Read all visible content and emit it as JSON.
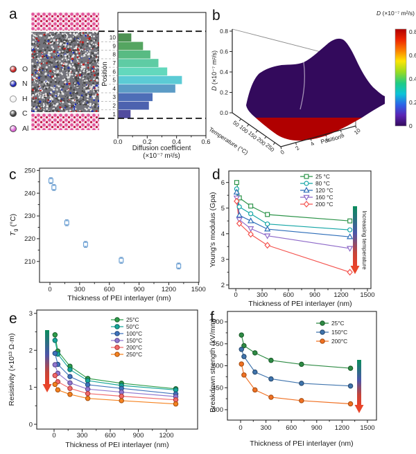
{
  "panel_labels": {
    "a": "a",
    "b": "b",
    "c": "c",
    "d": "d",
    "e": "e",
    "f": "f"
  },
  "atom_legend": [
    {
      "symbol": "O",
      "color": "#c81e1e"
    },
    {
      "symbol": "N",
      "color": "#1d24b8"
    },
    {
      "symbol": "H",
      "color": "#f2f2f2"
    },
    {
      "symbol": "C",
      "color": "#3d3d3d"
    },
    {
      "symbol": "Al",
      "color": "#d95fd2"
    }
  ],
  "chart_data": [
    {
      "id": "a",
      "type": "bar",
      "orientation": "horizontal",
      "ylabel": "Position",
      "xlabel_lines": [
        "Diffusion coefficient",
        "(×10⁻⁷ m²/s)"
      ],
      "categories": [
        "1",
        "2",
        "3",
        "4",
        "5",
        "6",
        "7",
        "8",
        "9",
        "10"
      ],
      "values": [
        0.085,
        0.21,
        0.235,
        0.39,
        0.435,
        0.335,
        0.275,
        0.22,
        0.17,
        0.09
      ],
      "bar_colors": [
        "#514b9e",
        "#4d62af",
        "#4e6eb7",
        "#5c9cc6",
        "#5ccbd5",
        "#63d8bd",
        "#5ecca4",
        "#58bb83",
        "#55a561",
        "#4c9152"
      ],
      "xticks": [
        0,
        0.2,
        0.4,
        0.6
      ],
      "xtick_labels": [
        "0.0",
        "0.2",
        "0.4",
        "0.6"
      ],
      "xlim": [
        0,
        0.6
      ]
    },
    {
      "id": "b",
      "type": "surface",
      "zlabel_parts": [
        {
          "t": "D",
          "it": 1
        },
        {
          "t": " (×10⁻⁷ m²/s)"
        }
      ],
      "ztick_labels": [
        "0.0",
        "0.2",
        "0.4",
        "0.6",
        "0.8"
      ],
      "xlabel": "Temperature (°C)",
      "xtick_labels": [
        "50",
        "100",
        "150",
        "200",
        "250"
      ],
      "ylabel": "Position",
      "ytick_labels": [
        "0",
        "2",
        "4",
        "6",
        "8",
        "10"
      ],
      "colorbar": {
        "title_parts": [
          {
            "t": "D",
            "it": 1
          },
          {
            "t": " (×10⁻⁷ m²/s)"
          }
        ],
        "tick_labels": [
          "0",
          "0.2",
          "0.4",
          "0.6",
          "0.8"
        ],
        "colors": [
          "#330a5c",
          "#5a24b4",
          "#2b63e8",
          "#0cc3d8",
          "#1ecb86",
          "#9bdc20",
          "#fde504",
          "#fb7e00",
          "#ee2500",
          "#b00000"
        ]
      }
    },
    {
      "id": "c",
      "type": "scatter",
      "xlabel": "Thickness of PEI interlayer (nm)",
      "ylabel_parts": [
        {
          "t": "T",
          "it": 1
        },
        {
          "t": "g",
          "dy": 2.5,
          "f": 0.72
        },
        {
          "t": " (°C)",
          "dy": -2.5
        }
      ],
      "x": [
        10,
        40,
        170,
        360,
        720,
        1300
      ],
      "y": [
        245.5,
        242.5,
        227,
        217.5,
        210.5,
        208
      ],
      "yerr": 1.3,
      "marker": {
        "shape": "square",
        "color": "#6fa3d6"
      },
      "xticks": [
        0,
        300,
        600,
        900,
        1200,
        1500
      ],
      "xtick_labels": [
        "0",
        "300",
        "600",
        "900",
        "1200",
        "1500"
      ],
      "yticks": [
        210,
        220,
        230,
        240,
        250
      ],
      "ytick_labels": [
        "210",
        "220",
        "230",
        "240",
        "250"
      ]
    },
    {
      "id": "d",
      "type": "line-scatter",
      "xlabel": "Thickness of PEI interlayer (nm)",
      "ylabel": "Young's modulus (Gpa)",
      "x": [
        10,
        40,
        170,
        360,
        1300
      ],
      "series": [
        {
          "name": "25 °C",
          "marker": "square",
          "color": "#2b9348",
          "values": [
            6.0,
            5.4,
            5.08,
            4.75,
            4.5
          ]
        },
        {
          "name": "80 °C",
          "marker": "circle",
          "color": "#12a5a5",
          "values": [
            5.75,
            5.05,
            4.78,
            4.38,
            4.15
          ]
        },
        {
          "name": "120 °C",
          "marker": "tri-up",
          "color": "#2b6cb8",
          "values": [
            5.62,
            4.72,
            4.5,
            4.18,
            3.88
          ]
        },
        {
          "name": "160 °C",
          "marker": "tri-down",
          "color": "#8d68c8",
          "values": [
            5.4,
            4.55,
            4.2,
            3.92,
            3.43
          ]
        },
        {
          "name": "200 °C",
          "marker": "diamond",
          "color": "#f4524d",
          "values": [
            5.27,
            4.4,
            3.98,
            3.55,
            2.5
          ]
        }
      ],
      "annotation": "Increasing temperature",
      "xticks": [
        0,
        300,
        600,
        900,
        1200,
        1500
      ],
      "xtick_labels": [
        "0",
        "300",
        "600",
        "900",
        "1200",
        "1500"
      ],
      "yticks": [
        2,
        3,
        4,
        5,
        6
      ],
      "ytick_labels": [
        "2",
        "3",
        "4",
        "5",
        "6"
      ]
    },
    {
      "id": "e",
      "type": "line-scatter",
      "xlabel": "Thickness of PEI interlayer (nm)",
      "ylabel": "Resistivity (×10¹³ Ω·m)",
      "x": [
        10,
        40,
        170,
        360,
        720,
        1300
      ],
      "series": [
        {
          "name": "25°C",
          "marker": "dot",
          "color": "#2f9e4a",
          "edge": "#1b6130",
          "values": [
            2.42,
            1.98,
            1.57,
            1.24,
            1.11,
            0.96
          ]
        },
        {
          "name": "50°C",
          "marker": "dot",
          "color": "#17a79b",
          "edge": "#0c6b63",
          "values": [
            2.27,
            1.9,
            1.48,
            1.18,
            1.05,
            0.93
          ]
        },
        {
          "name": "100°C",
          "marker": "dot",
          "color": "#3f74bd",
          "edge": "#274b80",
          "values": [
            1.92,
            1.62,
            1.29,
            1.07,
            0.97,
            0.82
          ]
        },
        {
          "name": "150°C",
          "marker": "dot",
          "color": "#9178cf",
          "edge": "#5d4a91",
          "values": [
            1.61,
            1.38,
            1.12,
            0.95,
            0.87,
            0.75
          ]
        },
        {
          "name": "200°C",
          "marker": "dot",
          "color": "#f26a6a",
          "edge": "#b03a3a",
          "values": [
            1.32,
            1.15,
            0.97,
            0.83,
            0.76,
            0.66
          ]
        },
        {
          "name": "250°C",
          "marker": "dot",
          "color": "#f5821f",
          "edge": "#aa5210",
          "values": [
            1.08,
            0.93,
            0.81,
            0.7,
            0.64,
            0.55
          ]
        }
      ],
      "xticks": [
        0,
        300,
        600,
        900,
        1200
      ],
      "xtick_labels": [
        "0",
        "300",
        "600",
        "900",
        "1200"
      ],
      "yticks": [
        0,
        1,
        2,
        3
      ],
      "ytick_labels": [
        "0",
        "1",
        "2",
        "3"
      ]
    },
    {
      "id": "f",
      "type": "line-scatter",
      "xlabel": "Thickness of PEI interlayer (nm)",
      "ylabel": "Breakdown strength (kV/mm)",
      "x": [
        10,
        40,
        170,
        360,
        720,
        1300
      ],
      "series": [
        {
          "name": "25°C",
          "marker": "dot",
          "color": "#2e8b44",
          "edge": "#1a5c2a",
          "values": [
            810,
            737,
            688,
            637,
            610,
            583
          ]
        },
        {
          "name": "150°C",
          "marker": "dot",
          "color": "#3f74ad",
          "edge": "#27496e",
          "values": [
            712,
            663,
            557,
            510,
            480,
            462
          ]
        },
        {
          "name": "200°C",
          "marker": "dot",
          "color": "#f07022",
          "edge": "#a84e12",
          "values": [
            612,
            537,
            435,
            385,
            362,
            340
          ]
        }
      ],
      "xticks": [
        0,
        300,
        600,
        900,
        1200,
        1500
      ],
      "xtick_labels": [
        "0",
        "300",
        "600",
        "900",
        "1200",
        "1500"
      ],
      "yticks": [
        300,
        450,
        600,
        750,
        900
      ],
      "ytick_labels": [
        "300",
        "450",
        "600",
        "750",
        "900"
      ]
    }
  ]
}
